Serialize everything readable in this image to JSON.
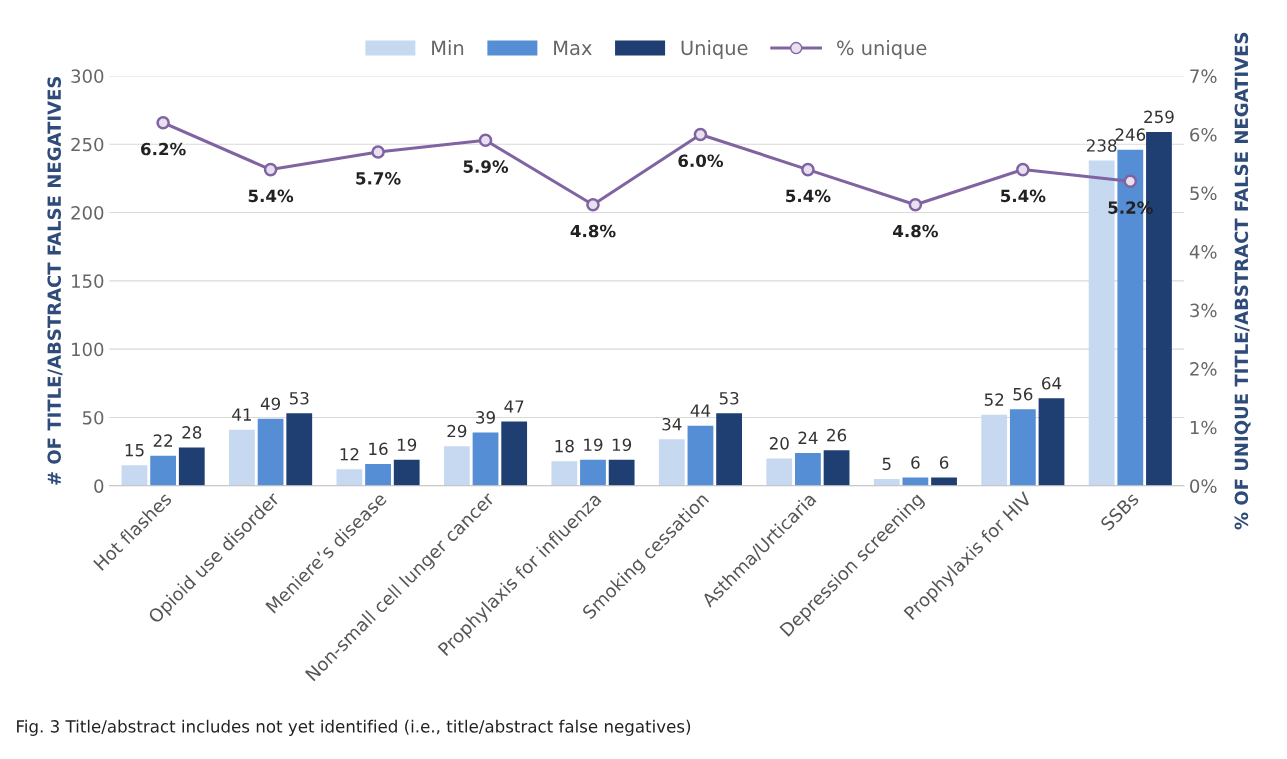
{
  "chart_data": {
    "type": "bar",
    "categories": [
      "Hot flashes",
      "Opioid use disorder",
      "Meniere’s disease",
      "Non-small cell lunger cancer",
      "Prophylaxis for influenza",
      "Smoking cessation",
      "Asthma/Urticaria",
      "Depression screening",
      "Prophylaxis for HIV",
      "SSBs"
    ],
    "series": [
      {
        "name": "Min",
        "color": "#c6d9f0",
        "values": [
          15,
          41,
          12,
          29,
          18,
          34,
          20,
          5,
          52,
          238
        ]
      },
      {
        "name": "Max",
        "color": "#558ed5",
        "values": [
          22,
          49,
          16,
          39,
          19,
          44,
          24,
          6,
          56,
          246
        ]
      },
      {
        "name": "Unique",
        "color": "#1f3f73",
        "values": [
          28,
          53,
          19,
          47,
          19,
          53,
          26,
          6,
          64,
          259
        ]
      },
      {
        "name": "% unique",
        "type": "line",
        "axis": "y2",
        "color": "#8064a2",
        "marker": "circle",
        "values": [
          6.2,
          5.4,
          5.7,
          5.9,
          4.8,
          6.0,
          5.4,
          4.8,
          5.4,
          5.2
        ],
        "value_labels": [
          "6.2%",
          "5.4%",
          "5.7%",
          "5.9%",
          "4.8%",
          "6.0%",
          "5.4%",
          "4.8%",
          "5.4%",
          "5.2%"
        ]
      }
    ],
    "ylabel": "# OF TITLE/ABSTRACT FALSE NEGATIVES",
    "y2label": "% OF UNIQUE TITLE/ABSTRACT FALSE NEGATIVES",
    "ylim": [
      0,
      300
    ],
    "yticks": [
      0,
      50,
      100,
      150,
      200,
      250,
      300
    ],
    "y2lim": [
      0,
      7
    ],
    "y2ticks": [
      {
        "value": 0,
        "label": "0%"
      },
      {
        "value": 1,
        "label": "1%"
      },
      {
        "value": 2,
        "label": "2%"
      },
      {
        "value": 3,
        "label": "3%"
      },
      {
        "value": 4,
        "label": "4%"
      },
      {
        "value": 5,
        "label": "5%"
      },
      {
        "value": 6,
        "label": "6%"
      },
      {
        "value": 7,
        "label": "7%"
      }
    ],
    "grid": "y",
    "legend": "top",
    "data_labels": true,
    "annotations": [
      "Fig. 3 Title/abstract includes not yet identified (i.e., title/abstract false negatives)"
    ]
  }
}
